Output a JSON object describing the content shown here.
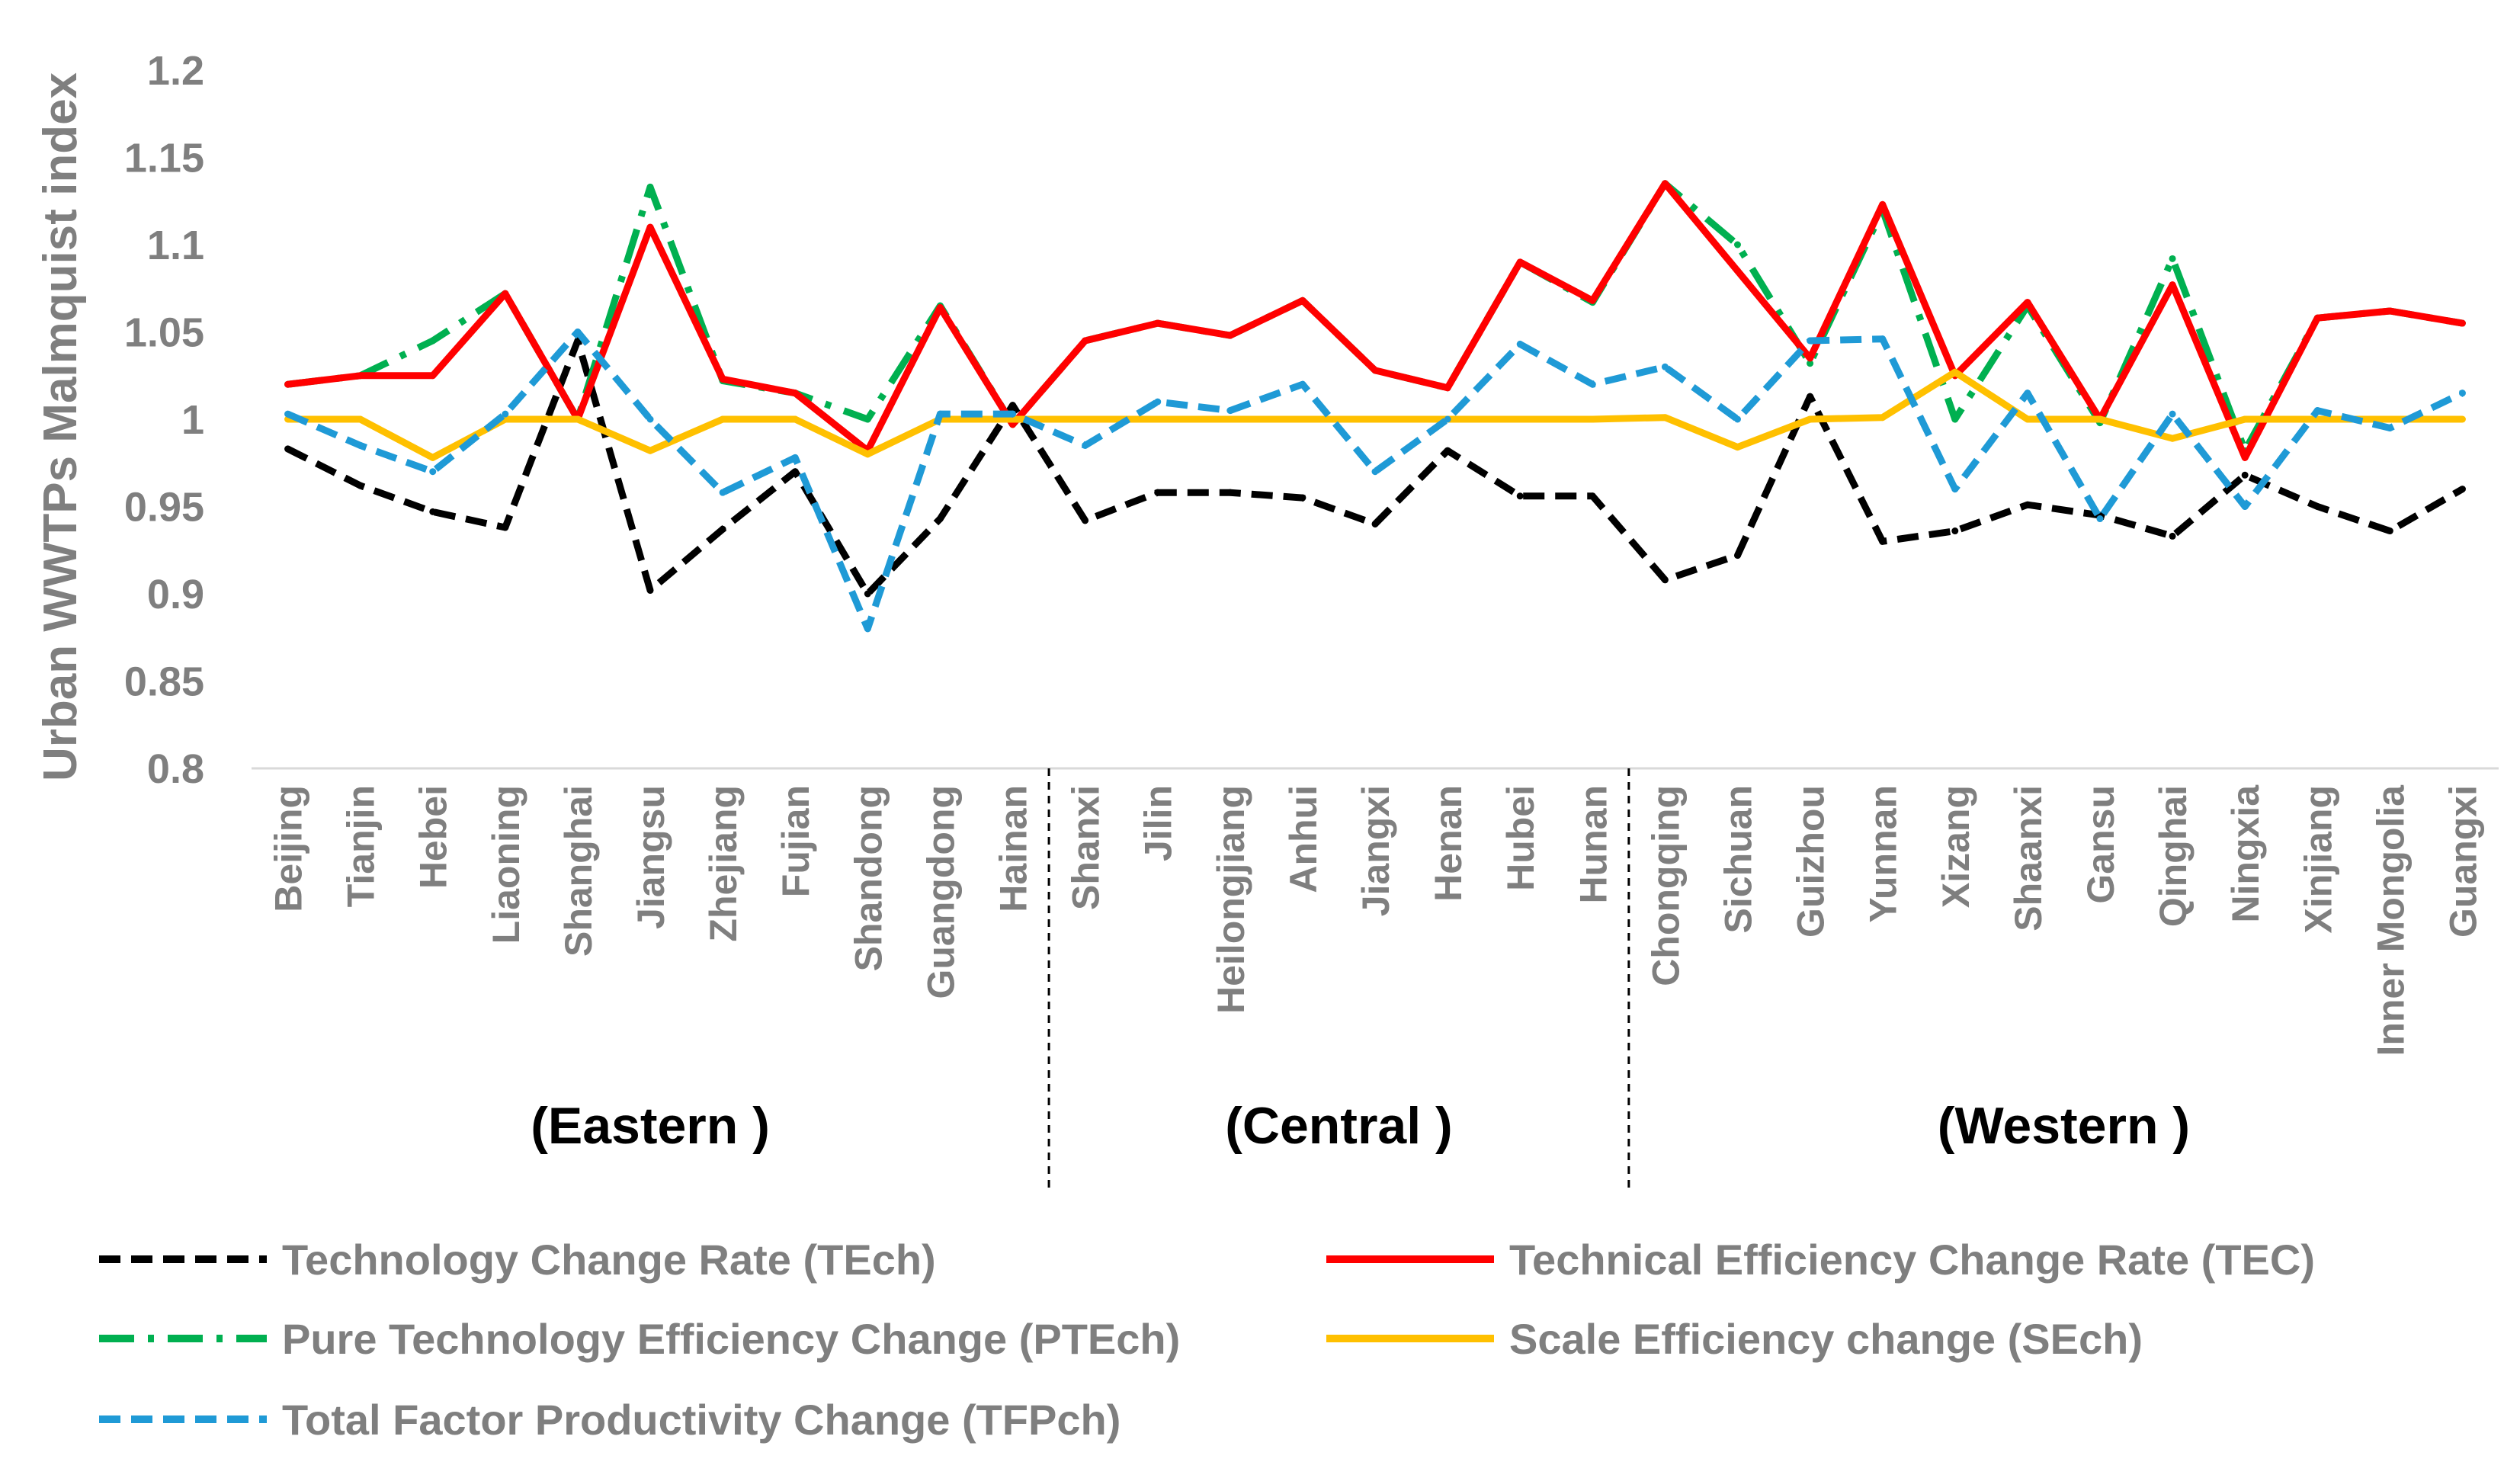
{
  "chart_data": {
    "type": "line",
    "title": "",
    "xlabel": "",
    "ylabel": "Urban WWTPs Malmquist index",
    "ylim": [
      0.8,
      1.2
    ],
    "yticks": [
      "0.8",
      "0.85",
      "0.9",
      "0.95",
      "1",
      "1.05",
      "1.1",
      "1.15",
      "1.2"
    ],
    "categories": [
      "Beijing",
      "Tianjin",
      "Hebei",
      "Liaoning",
      "Shanghai",
      "Jiangsu",
      "Zhejiang",
      "Fujian",
      "Shandong",
      "Guangdong",
      "Hainan",
      "Shanxi",
      "Jilin",
      "Heilongjiang",
      "Anhui",
      "Jiangxi",
      "Henan",
      "Hubei",
      "Hunan",
      "Chongqing",
      "Sichuan",
      "Guizhou",
      "Yunnan",
      "Xizang",
      "Shaanxi",
      "Gansu",
      "Qinghai",
      "Ningxia",
      "Xinjiang",
      "Inner Mongolia",
      "Guangxi"
    ],
    "groups": [
      {
        "label": "(Eastern )",
        "start": 0,
        "end": 10
      },
      {
        "label": "(Central )",
        "start": 11,
        "end": 18
      },
      {
        "label": "(Western )",
        "start": 19,
        "end": 30
      }
    ],
    "series": [
      {
        "name": "Technology Change Rate (TEch)",
        "color": "#000000",
        "style": "dash",
        "values": [
          0.983,
          0.962,
          0.947,
          0.938,
          1.045,
          0.902,
          0.937,
          0.97,
          0.9,
          0.943,
          1.008,
          0.942,
          0.958,
          0.958,
          0.955,
          0.94,
          0.982,
          0.956,
          0.956,
          0.908,
          0.922,
          1.013,
          0.93,
          0.936,
          0.951,
          0.945,
          0.933,
          0.968,
          0.95,
          0.936,
          0.96
        ]
      },
      {
        "name": "Pure Technology Efficiency Change (PTEch)",
        "color": "#00b050",
        "style": "dashdot",
        "values": [
          1.02,
          1.025,
          1.045,
          1.072,
          1.0,
          1.133,
          1.022,
          1.015,
          1.0,
          1.065,
          0.997,
          1.045,
          1.055,
          1.048,
          1.068,
          1.028,
          1.018,
          1.09,
          1.067,
          1.135,
          1.1,
          1.032,
          1.12,
          1.0,
          1.065,
          0.998,
          1.092,
          0.982,
          1.058,
          1.062,
          1.055
        ]
      },
      {
        "name": "Technical Efficiency Change Rate (TEC)",
        "color": "#ff0000",
        "style": "solid",
        "values": [
          1.02,
          1.025,
          1.025,
          1.072,
          1.0,
          1.11,
          1.023,
          1.015,
          0.982,
          1.064,
          0.997,
          1.045,
          1.055,
          1.048,
          1.068,
          1.028,
          1.018,
          1.09,
          1.068,
          1.135,
          1.085,
          1.035,
          1.123,
          1.025,
          1.067,
          1.0,
          1.077,
          0.978,
          1.058,
          1.062,
          1.055
        ]
      },
      {
        "name": "Scale Efficiency change (SEch)",
        "color": "#ffc000",
        "style": "solid",
        "values": [
          1.0,
          1.0,
          0.978,
          1.0,
          1.0,
          0.982,
          1.0,
          1.0,
          0.98,
          1.0,
          1.0,
          1.0,
          1.0,
          1.0,
          1.0,
          1.0,
          1.0,
          1.0,
          1.0,
          1.001,
          0.984,
          1.0,
          1.001,
          1.027,
          1.0,
          1.0,
          0.989,
          1.0,
          1.0,
          1.0,
          1.0
        ]
      },
      {
        "name": "Total Factor Productivity Change (TFPch)",
        "color": "#1f9ad6",
        "style": "dash",
        "values": [
          1.003,
          0.985,
          0.97,
          1.003,
          1.05,
          1.0,
          0.958,
          0.978,
          0.88,
          1.003,
          1.003,
          0.985,
          1.01,
          1.005,
          1.02,
          0.97,
          1.0,
          1.043,
          1.02,
          1.03,
          1.0,
          1.045,
          1.046,
          0.96,
          1.015,
          0.943,
          1.003,
          0.95,
          1.005,
          0.995,
          1.015
        ]
      }
    ]
  },
  "legend": [
    {
      "label": "Technology Change Rate (TEch)",
      "color": "#000000",
      "style": "dash"
    },
    {
      "label": "Technical Efficiency Change Rate (TEC)",
      "color": "#ff0000",
      "style": "solid"
    },
    {
      "label": "Pure Technology Efficiency Change (PTEch)",
      "color": "#00b050",
      "style": "dashdot"
    },
    {
      "label": "Scale Efficiency change (SEch)",
      "color": "#ffc000",
      "style": "solid"
    },
    {
      "label": "Total Factor Productivity Change (TFPch)",
      "color": "#1f9ad6",
      "style": "dash"
    }
  ]
}
